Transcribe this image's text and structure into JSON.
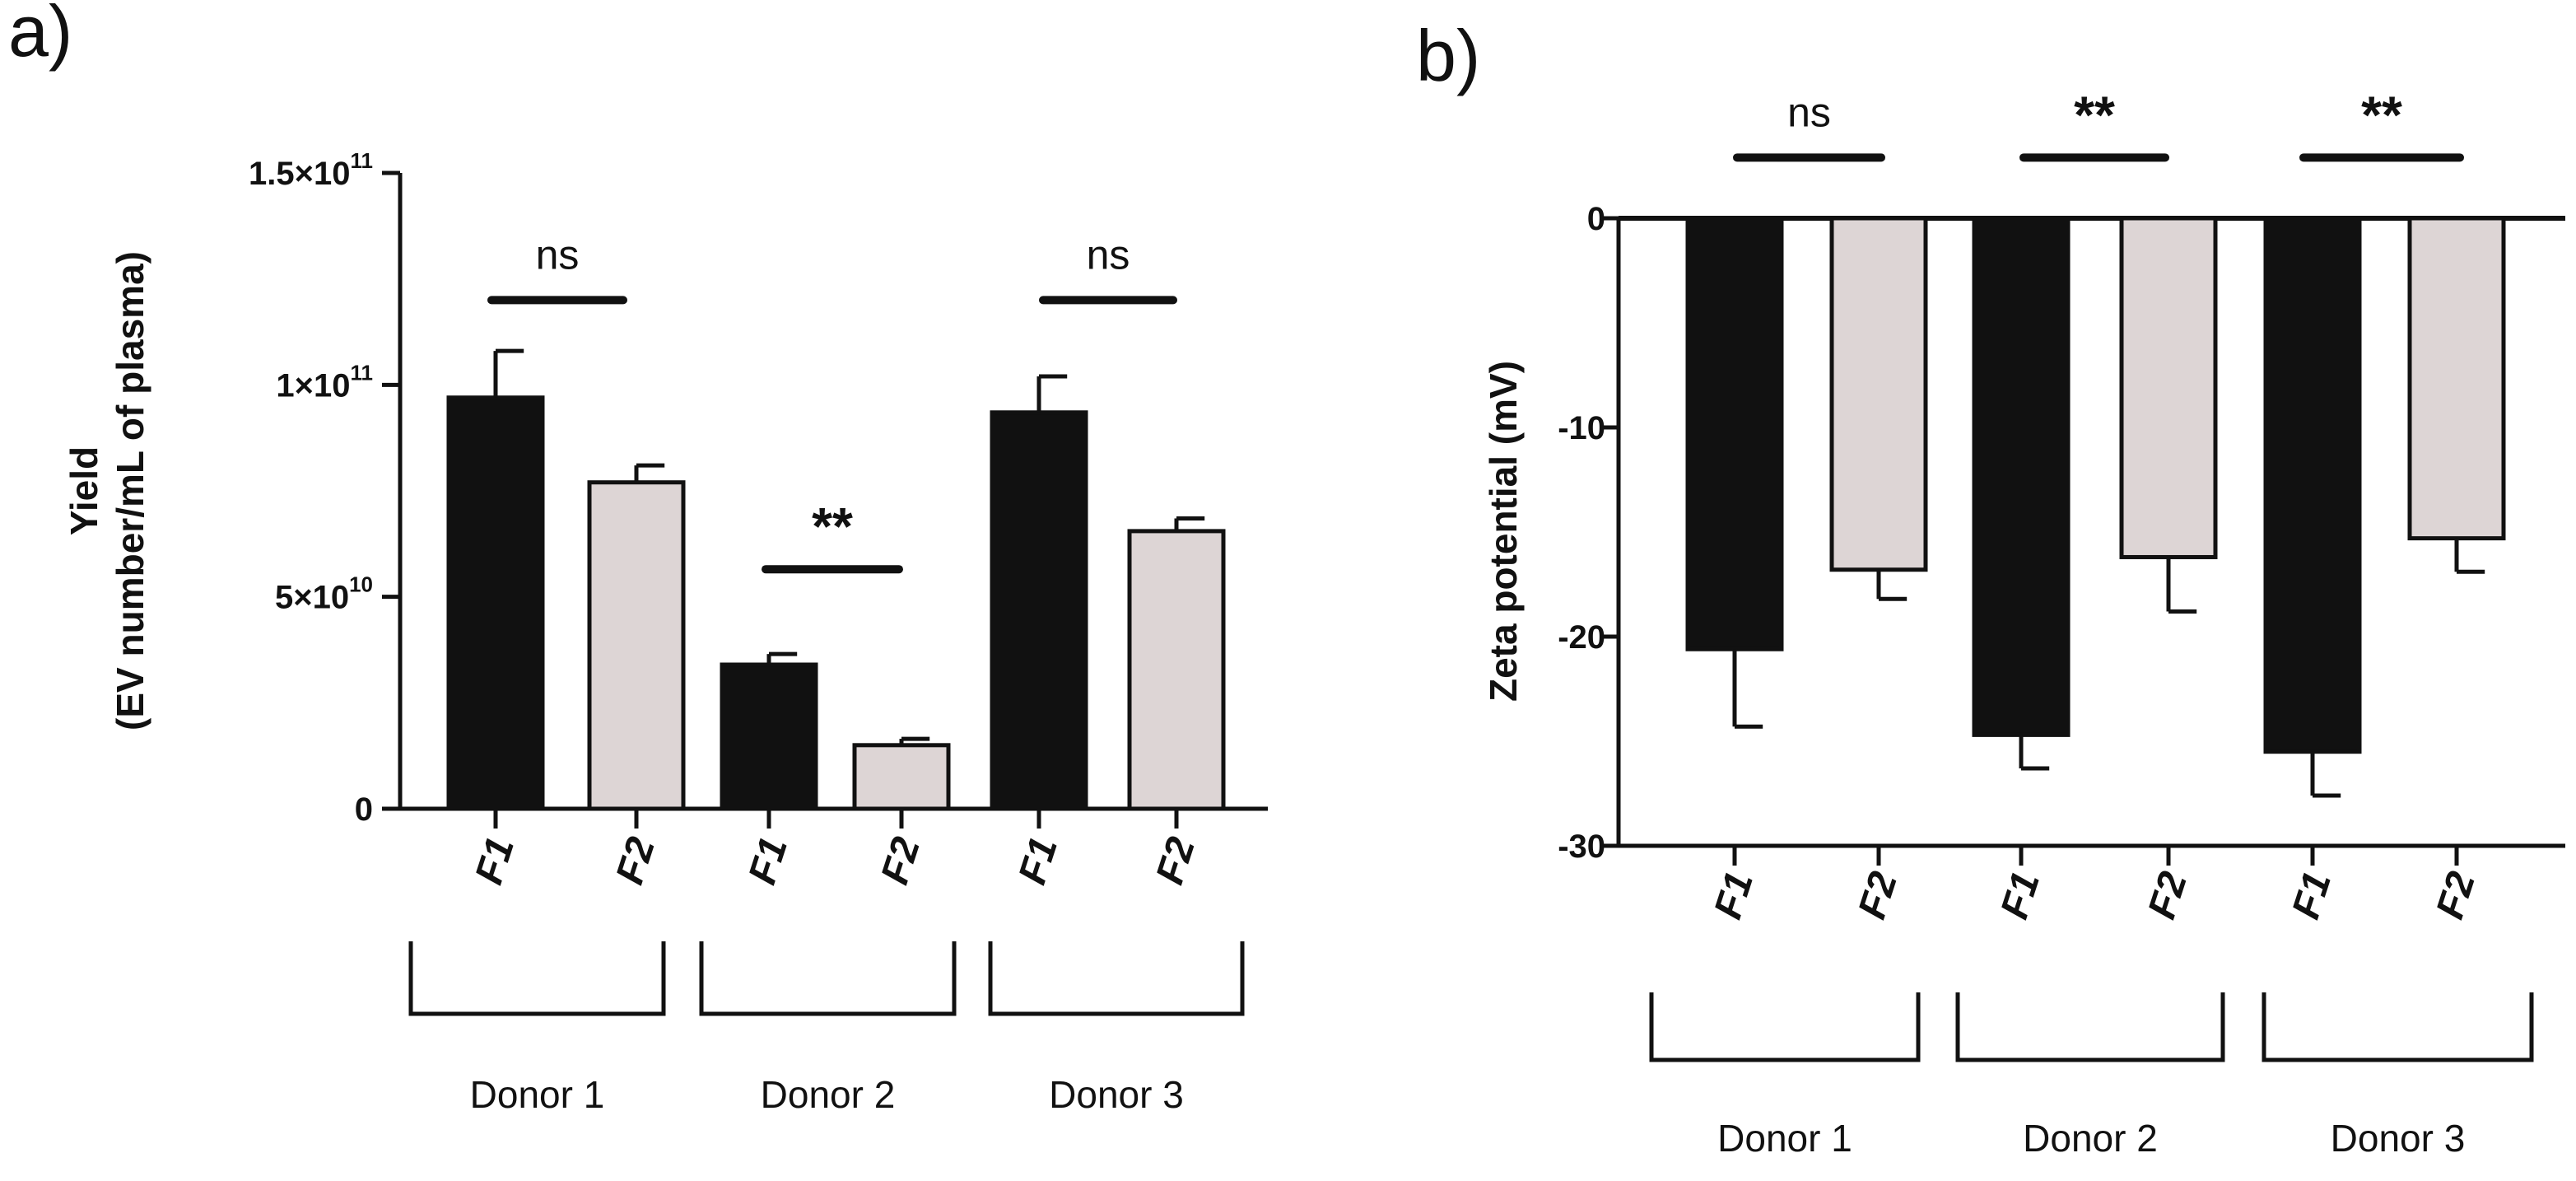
{
  "chart_data": [
    {
      "panel": "a)",
      "type": "bar",
      "ylabel_line1": "Yield",
      "ylabel_line2": "(EV number/mL of plasma)",
      "ylim": [
        0,
        150000000000.0
      ],
      "yticks": [
        {
          "value": 0,
          "base": "0",
          "exp": ""
        },
        {
          "value": 50000000000.0,
          "base": "5×10",
          "exp": "10"
        },
        {
          "value": 100000000000.0,
          "base": "1×10",
          "exp": "11"
        },
        {
          "value": 150000000000.0,
          "base": "1.5×10",
          "exp": "11"
        }
      ],
      "groups": [
        "Donor 1",
        "Donor 2",
        "Donor 3"
      ],
      "categories": [
        "F1",
        "F2",
        "F1",
        "F2",
        "F1",
        "F2"
      ],
      "values": [
        97000000000.0,
        77000000000.0,
        34000000000.0,
        15000000000.0,
        93500000000.0,
        65500000000.0
      ],
      "errors": [
        11000000000.0,
        4000000000.0,
        2500000000.0,
        1500000000.0,
        8500000000.0,
        3000000000.0
      ],
      "colors": [
        "#111111",
        "#ddd5d5",
        "#111111",
        "#ddd5d5",
        "#111111",
        "#ddd5d5"
      ],
      "significance": [
        {
          "group": 0,
          "label": "ns",
          "y": 120000000000.0
        },
        {
          "group": 1,
          "label": "**",
          "y": 56500000000.0
        },
        {
          "group": 2,
          "label": "ns",
          "y": 120000000000.0
        }
      ]
    },
    {
      "panel": "b)",
      "type": "bar",
      "ylabel_line1": "Zeta potential (mV)",
      "ylim": [
        -30,
        0
      ],
      "yticks": [
        {
          "value": 0,
          "base": "0",
          "exp": ""
        },
        {
          "value": -10,
          "base": "-10",
          "exp": ""
        },
        {
          "value": -20,
          "base": "-20",
          "exp": ""
        },
        {
          "value": -30,
          "base": "-30",
          "exp": ""
        }
      ],
      "groups": [
        "Donor 1",
        "Donor 2",
        "Donor 3"
      ],
      "categories": [
        "F1",
        "F2",
        "F1",
        "F2",
        "F1",
        "F2"
      ],
      "values": [
        -20.6,
        -16.8,
        -24.7,
        -16.2,
        -25.5,
        -15.3
      ],
      "errors": [
        3.7,
        1.4,
        1.6,
        2.6,
        2.1,
        1.6
      ],
      "colors": [
        "#111111",
        "#ddd5d5",
        "#111111",
        "#ddd5d5",
        "#111111",
        "#ddd5d5"
      ],
      "significance": [
        {
          "group": 0,
          "label": "ns",
          "y": 2.9
        },
        {
          "group": 1,
          "label": "**",
          "y": 2.9
        },
        {
          "group": 2,
          "label": "**",
          "y": 2.9
        }
      ]
    }
  ]
}
